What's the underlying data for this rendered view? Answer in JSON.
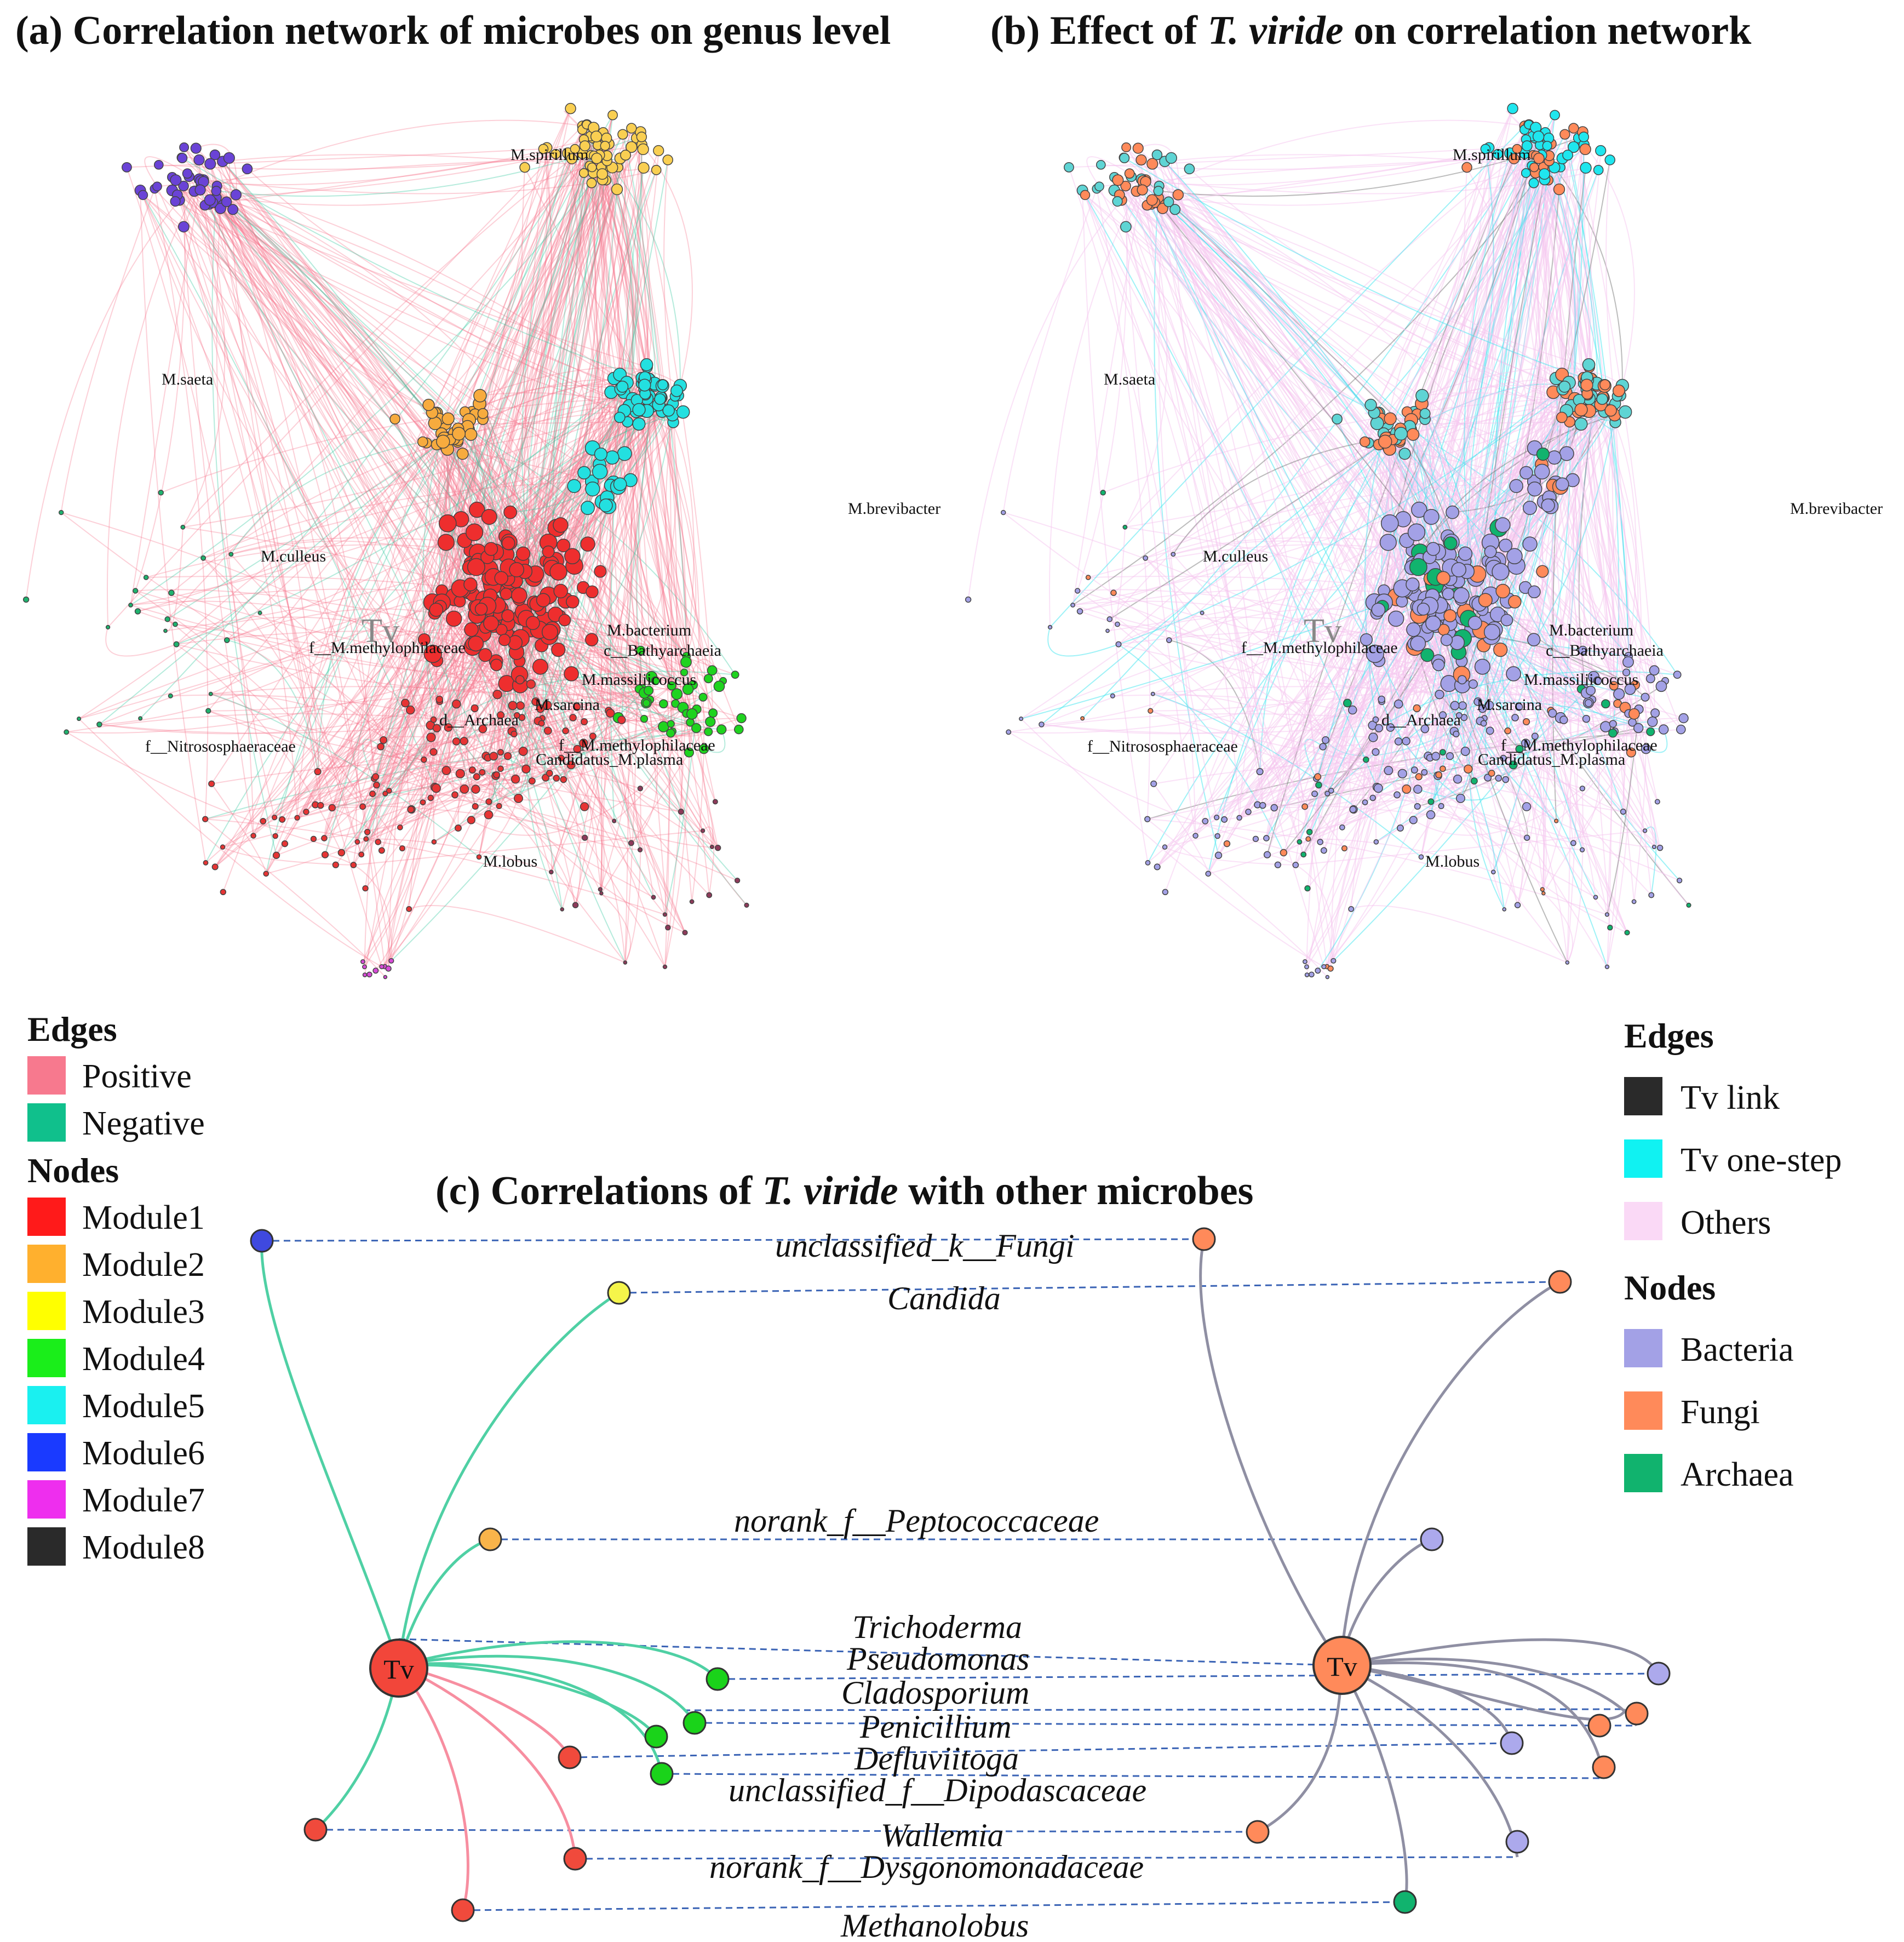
{
  "panel_a": {
    "title": "(a) Correlation network of microbes on genus level",
    "node_labels": [
      "M.spirillum",
      "M.saeta",
      "M.culleus",
      "M.brevibacter",
      "M.bacterium",
      "c__Bathyarchaeia",
      "f__M.methylophilaceae",
      "M.massiliicoccus",
      "M.sarcina",
      "d__Archaea",
      "f__M.methylophilaceae",
      "Candidatus_M.plasma",
      "f__Nitrososphaeraceae",
      "M.lobus"
    ],
    "tv_label": "Tv"
  },
  "panel_b": {
    "title_prefix": "(b) Effect of ",
    "title_species": "T. viride",
    "title_suffix": " on correlation network",
    "node_labels": [
      "M.spirillum",
      "M.saeta",
      "M.culleus",
      "M.brevibacter",
      "M.bacterium",
      "c__Bathyarchaeia",
      "f__M.methylophilaceae",
      "M.massiliicoccus",
      "M.sarcina",
      "d__Archaea",
      "f__M.methylophilaceae",
      "Candidatus_M.plasma",
      "f__Nitrososphaeraceae",
      "M.lobus"
    ],
    "tv_label": "Tv"
  },
  "legend_a": {
    "edges_heading": "Edges",
    "edges": [
      {
        "label": "Positive",
        "color": "#f7798e"
      },
      {
        "label": "Negative",
        "color": "#10c08c"
      }
    ],
    "nodes_heading": "Nodes",
    "nodes": [
      {
        "label": "Module1",
        "color": "#ff1a1a"
      },
      {
        "label": "Module2",
        "color": "#ffb02e"
      },
      {
        "label": "Module3",
        "color": "#ffff00"
      },
      {
        "label": "Module4",
        "color": "#1aee1a"
      },
      {
        "label": "Module5",
        "color": "#1af0f0"
      },
      {
        "label": "Module6",
        "color": "#1a3aff"
      },
      {
        "label": "Module7",
        "color": "#ee2eee"
      },
      {
        "label": "Module8",
        "color": "#2a2a2a"
      }
    ]
  },
  "legend_b": {
    "edges_heading": "Edges",
    "edges": [
      {
        "label": "Tv link",
        "color": "#2a2a2a"
      },
      {
        "label": "Tv one-step",
        "color": "#10f2f2"
      },
      {
        "label": "Others",
        "color": "#fad9f6"
      }
    ],
    "nodes_heading": "Nodes",
    "nodes": [
      {
        "label": "Bacteria",
        "color": "#a3a1e6"
      },
      {
        "label": "Fungi",
        "color": "#ff8a5a"
      },
      {
        "label": "Archaea",
        "color": "#11b36e"
      }
    ]
  },
  "panel_c": {
    "title_prefix": "(c) Correlations of ",
    "title_species": "T. viride",
    "title_suffix": " with other microbes",
    "tv_left": "Tv",
    "tv_right": "Tv",
    "taxa": [
      "unclassified_k__Fungi",
      "Candida",
      "norank_f__Peptococcaceae",
      "Trichoderma",
      "Pseudomonas",
      "Cladosporium",
      "Penicillium",
      "Defluviitoga",
      "unclassified_f__Dipodascaceae",
      "Wallemia",
      "norank_f__Dysgonomonadaceae",
      "Methanolobus"
    ]
  }
}
